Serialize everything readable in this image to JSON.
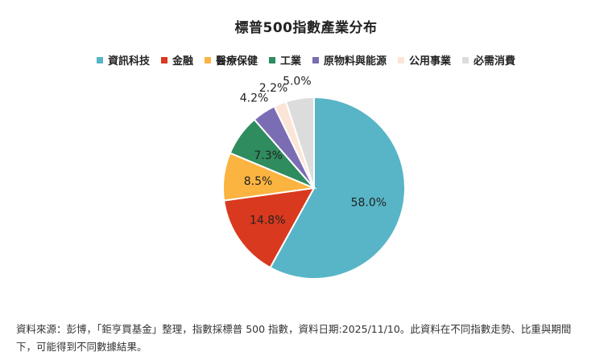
{
  "chart_data": {
    "type": "pie",
    "title": "標普500指數產業分布",
    "legend_position": "top",
    "slices": [
      {
        "label": "資訊科技",
        "value": 58.0,
        "value_label": "58.0%",
        "color": "#57b5c7"
      },
      {
        "label": "金融",
        "value": 14.8,
        "value_label": "14.8%",
        "color": "#d9391e"
      },
      {
        "label": "醫療保健",
        "value": 8.5,
        "value_label": "8.5%",
        "color": "#fbb440"
      },
      {
        "label": "工業",
        "value": 7.3,
        "value_label": "7.3%",
        "color": "#2f8c5f"
      },
      {
        "label": "原物料與能源",
        "value": 4.2,
        "value_label": "4.2%",
        "color": "#7b6db3"
      },
      {
        "label": "公用事業",
        "value": 2.2,
        "value_label": "2.2%",
        "color": "#fbe5d6"
      },
      {
        "label": "必需消費",
        "value": 5.0,
        "value_label": "5.0%",
        "color": "#dcdcdc"
      }
    ]
  },
  "footnote": {
    "line1": "資料來源：彭博，「鉅亨買基金」整理，指數採標普 500 指數，資料日期:2025/11/10。此資料在不同指數走勢、比重與期間",
    "line2": "下，可能得到不同數據結果。"
  }
}
